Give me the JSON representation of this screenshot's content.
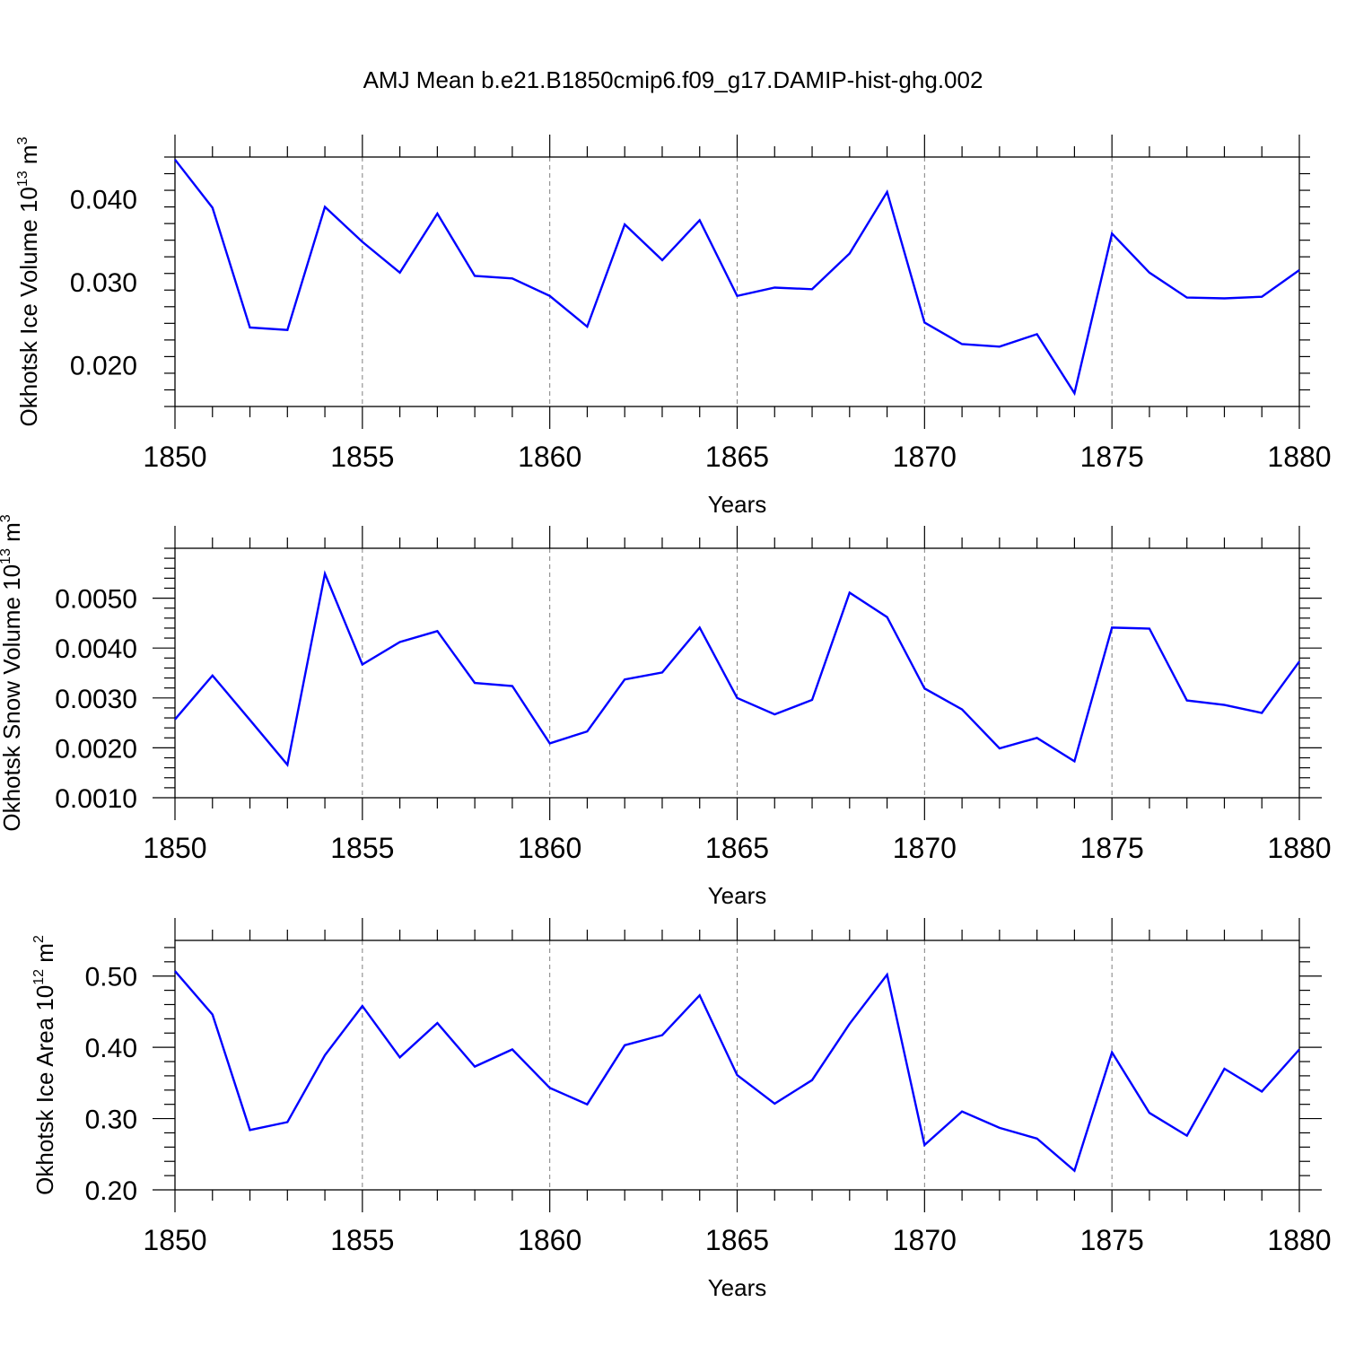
{
  "title": "AMJ Mean b.e21.B1850cmip6.f09_g17.DAMIP-hist-ghg.002",
  "colors": {
    "line": "#0000ff",
    "axis": "#000000",
    "grid": "#808080"
  },
  "chart_data": [
    {
      "type": "line",
      "xlabel": "Years",
      "ylabel_main": "Okhotsk Ice Volume 10",
      "ylabel_sup": "13",
      "ylabel_unit": "m",
      "ylabel_unit_sup": "3",
      "xlim": [
        1850,
        1880
      ],
      "ylim": [
        0.015,
        0.045
      ],
      "xticks": [
        1850,
        1855,
        1860,
        1865,
        1870,
        1875,
        1880
      ],
      "yticks": [
        0.02,
        0.03,
        0.04
      ],
      "ytick_labels": [
        "0.020",
        "0.030",
        "0.040"
      ],
      "y_minor_step": 0.002,
      "grid": "vertical dashed at major x ticks",
      "x": [
        1850,
        1851,
        1852,
        1853,
        1854,
        1855,
        1856,
        1857,
        1858,
        1859,
        1860,
        1861,
        1862,
        1863,
        1864,
        1865,
        1866,
        1867,
        1868,
        1869,
        1870,
        1871,
        1872,
        1873,
        1874,
        1875,
        1876,
        1877,
        1878,
        1879,
        1880
      ],
      "y": [
        0.0447,
        0.0389,
        0.0245,
        0.0242,
        0.039,
        0.0348,
        0.0311,
        0.0382,
        0.0307,
        0.0304,
        0.0283,
        0.0246,
        0.0369,
        0.0326,
        0.0374,
        0.0283,
        0.0293,
        0.0291,
        0.0334,
        0.0408,
        0.0251,
        0.0225,
        0.0222,
        0.0237,
        0.0166,
        0.0358,
        0.0311,
        0.0281,
        0.028,
        0.0282,
        0.0314
      ]
    },
    {
      "type": "line",
      "xlabel": "Years",
      "ylabel_main": "Okhotsk Snow Volume 10",
      "ylabel_sup": "13",
      "ylabel_unit": "m",
      "ylabel_unit_sup": "3",
      "xlim": [
        1850,
        1880
      ],
      "ylim": [
        0.001,
        0.006
      ],
      "xticks": [
        1850,
        1855,
        1860,
        1865,
        1870,
        1875,
        1880
      ],
      "yticks": [
        0.001,
        0.002,
        0.003,
        0.004,
        0.005
      ],
      "ytick_labels": [
        "0.0010",
        "0.0020",
        "0.0030",
        "0.0040",
        "0.0050"
      ],
      "y_minor_step": 0.0002,
      "grid": "vertical dashed at major x ticks",
      "x": [
        1850,
        1851,
        1852,
        1853,
        1854,
        1855,
        1856,
        1857,
        1858,
        1859,
        1860,
        1861,
        1862,
        1863,
        1864,
        1865,
        1866,
        1867,
        1868,
        1869,
        1870,
        1871,
        1872,
        1873,
        1874,
        1875,
        1876,
        1877,
        1878,
        1879,
        1880
      ],
      "y": [
        0.00257,
        0.00345,
        0.00256,
        0.00166,
        0.00549,
        0.00367,
        0.00412,
        0.00434,
        0.0033,
        0.00324,
        0.00209,
        0.00233,
        0.00337,
        0.00351,
        0.00441,
        0.003,
        0.00267,
        0.00296,
        0.00511,
        0.00462,
        0.00319,
        0.00277,
        0.00199,
        0.0022,
        0.00173,
        0.00441,
        0.00439,
        0.00295,
        0.00286,
        0.0027,
        0.00373
      ]
    },
    {
      "type": "line",
      "xlabel": "Years",
      "ylabel_main": "Okhotsk Ice Area 10",
      "ylabel_sup": "12",
      "ylabel_unit": "m",
      "ylabel_unit_sup": "2",
      "xlim": [
        1850,
        1880
      ],
      "ylim": [
        0.2,
        0.55
      ],
      "xticks": [
        1850,
        1855,
        1860,
        1865,
        1870,
        1875,
        1880
      ],
      "yticks": [
        0.2,
        0.3,
        0.4,
        0.5
      ],
      "ytick_labels": [
        "0.20",
        "0.30",
        "0.40",
        "0.50"
      ],
      "y_minor_step": 0.02,
      "grid": "vertical dashed at major x ticks",
      "x": [
        1850,
        1851,
        1852,
        1853,
        1854,
        1855,
        1856,
        1857,
        1858,
        1859,
        1860,
        1861,
        1862,
        1863,
        1864,
        1865,
        1866,
        1867,
        1868,
        1869,
        1870,
        1871,
        1872,
        1873,
        1874,
        1875,
        1876,
        1877,
        1878,
        1879,
        1880
      ],
      "y": [
        0.507,
        0.446,
        0.284,
        0.295,
        0.389,
        0.458,
        0.386,
        0.434,
        0.373,
        0.397,
        0.343,
        0.32,
        0.403,
        0.417,
        0.473,
        0.361,
        0.321,
        0.354,
        0.433,
        0.502,
        0.263,
        0.31,
        0.287,
        0.272,
        0.227,
        0.393,
        0.308,
        0.276,
        0.37,
        0.338,
        0.397
      ]
    }
  ]
}
